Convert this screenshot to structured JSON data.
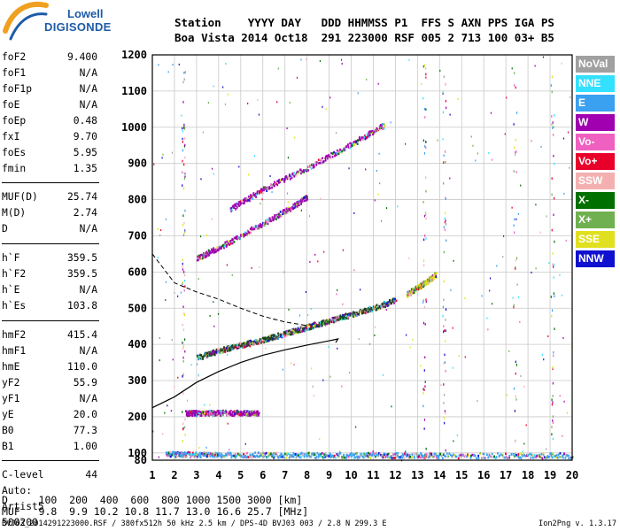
{
  "logo": {
    "line1": "Lowell",
    "line2": "DIGISONDE"
  },
  "header": {
    "labels": "Station    YYYY DAY   DDD HHMMSS P1  FFS S AXN PPS IGA PS",
    "values": "Boa Vista 2014 Oct18  291 223000 RSF 005 2 713 100 03+ B5"
  },
  "params": [
    {
      "label": "foF2",
      "value": "9.400"
    },
    {
      "label": "foF1",
      "value": "N/A"
    },
    {
      "label": "foF1p",
      "value": "N/A"
    },
    {
      "label": "foE",
      "value": "N/A"
    },
    {
      "label": "foEp",
      "value": "0.48"
    },
    {
      "label": "fxI",
      "value": "9.70"
    },
    {
      "label": "foEs",
      "value": "5.95"
    },
    {
      "label": "fmin",
      "value": "1.35"
    },
    {
      "label": "MUF(D)",
      "value": "25.74"
    },
    {
      "label": "M(D)",
      "value": "2.74"
    },
    {
      "label": "D",
      "value": "N/A"
    },
    {
      "label": "h`F",
      "value": "359.5"
    },
    {
      "label": "h`F2",
      "value": "359.5"
    },
    {
      "label": "h`E",
      "value": "N/A"
    },
    {
      "label": "h`Es",
      "value": "103.8"
    },
    {
      "label": "hmF2",
      "value": "415.4"
    },
    {
      "label": "hmF1",
      "value": "N/A"
    },
    {
      "label": "hmE",
      "value": "110.0"
    },
    {
      "label": "yF2",
      "value": "55.9"
    },
    {
      "label": "yF1",
      "value": "N/A"
    },
    {
      "label": "yE",
      "value": "20.0"
    },
    {
      "label": "B0",
      "value": "77.3"
    },
    {
      "label": "B1",
      "value": "1.00"
    },
    {
      "label": "C-level",
      "value": "44"
    }
  ],
  "auto": {
    "line1": "Auto:",
    "line2": "Artist5",
    "line3": "500200"
  },
  "legend": [
    {
      "label": "NoVal",
      "color": "#a0a0a0"
    },
    {
      "label": "NNE",
      "color": "#33e0ff"
    },
    {
      "label": "E",
      "color": "#3aa0f0"
    },
    {
      "label": "W",
      "color": "#a000b0"
    },
    {
      "label": "Vo-",
      "color": "#f060c0"
    },
    {
      "label": "Vo+",
      "color": "#e8002a"
    },
    {
      "label": "SSW",
      "color": "#f4b0b0"
    },
    {
      "label": "X-",
      "color": "#007000"
    },
    {
      "label": "X+",
      "color": "#70b050"
    },
    {
      "label": "SSE",
      "color": "#e0e020"
    },
    {
      "label": "NNW",
      "color": "#1010d0"
    }
  ],
  "chart_data": {
    "type": "scatter",
    "title": "",
    "xlabel": "",
    "ylabel": "",
    "xlim": [
      1,
      20
    ],
    "ylim": [
      80,
      1200
    ],
    "x_ticks": [
      "1",
      "2",
      "3",
      "4",
      "5",
      "6",
      "7",
      "8",
      "9",
      "10",
      "11",
      "12",
      "13",
      "14",
      "15",
      "16",
      "17",
      "18",
      "19",
      "20"
    ],
    "y_ticks": [
      "80",
      "100",
      "200",
      "300",
      "400",
      "500",
      "600",
      "700",
      "800",
      "900",
      "1000",
      "1100",
      "1200"
    ],
    "grid": true,
    "traces": [
      {
        "name": "F2 O-trace",
        "color": "#204020",
        "x": [
          3.0,
          4.0,
          5.0,
          6.0,
          7.0,
          8.0,
          9.0,
          10.0,
          11.0,
          12.0
        ],
        "y": [
          365,
          385,
          400,
          415,
          432,
          450,
          468,
          485,
          503,
          525
        ]
      },
      {
        "name": "Es trace",
        "color": "#a000b0",
        "x": [
          2.5,
          3.0,
          4.0,
          5.0,
          5.8
        ],
        "y": [
          212,
          212,
          213,
          213,
          212
        ]
      },
      {
        "name": "Lower trace",
        "color": "#3aa0f0",
        "x": [
          1.6,
          2.5,
          4.0,
          6.0,
          8.0,
          10.0,
          12.0,
          14.0,
          17.5,
          20.0
        ],
        "y": [
          100,
          98,
          97,
          97,
          96,
          96,
          96,
          95,
          95,
          95
        ]
      },
      {
        "name": "2F trace",
        "color": "#a000b0",
        "x": [
          4.5,
          6.0,
          8.0,
          10.0,
          11.5
        ],
        "y": [
          775,
          830,
          890,
          955,
          1010
        ]
      },
      {
        "name": "2F trace lower",
        "color": "#a000b0",
        "x": [
          3.0,
          4.0,
          5.5,
          7.0,
          8.0
        ],
        "y": [
          640,
          670,
          720,
          770,
          810
        ]
      },
      {
        "name": "F2 extension",
        "color": "#e0e020",
        "x": [
          12.5,
          13.0,
          13.5,
          13.8
        ],
        "y": [
          540,
          560,
          580,
          595
        ]
      }
    ],
    "profile": {
      "x": [
        1.0,
        2.0,
        3.0,
        4.0,
        5.0,
        6.0,
        7.0,
        8.0,
        9.0,
        9.4,
        9.3
      ],
      "y": [
        225,
        255,
        295,
        325,
        350,
        370,
        385,
        398,
        410,
        415,
        405
      ]
    },
    "dashed_curve": {
      "x": [
        1.0,
        2.0,
        3.0,
        4.0,
        5.0,
        6.0,
        7.0,
        8.0
      ],
      "y": [
        650,
        570,
        545,
        525,
        500,
        478,
        462,
        452
      ]
    }
  },
  "muf_table": {
    "d_row": "D     100  200  400  600  800 1000 1500 3000 [km]",
    "muf_row": "MUF   9.8  9.9 10.2 10.8 11.7 13.0 16.6 25.7 [MHz]"
  },
  "footer": {
    "left": "BVJ03_2014291223000.RSF / 380fx512h 50 kHz 2.5 km / DPS-4D BVJ03 003 / 2.8 N 299.3 E",
    "right": "Ion2Png v. 1.3.17"
  }
}
